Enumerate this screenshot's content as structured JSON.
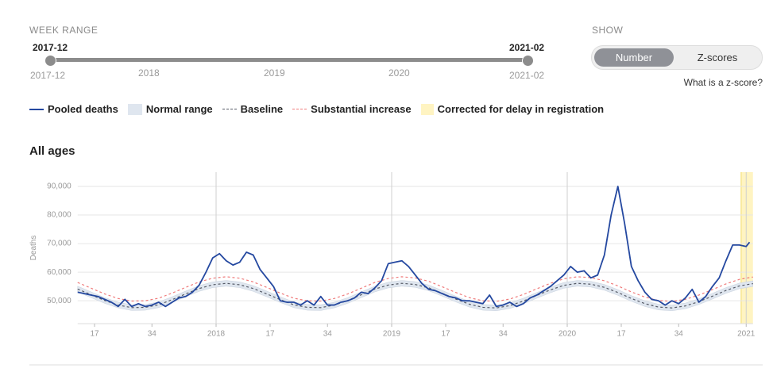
{
  "week_range": {
    "label": "WEEK RANGE",
    "start": "2017-12",
    "end": "2021-02",
    "ticks": [
      "2017-12",
      "2018",
      "2019",
      "2020",
      "2021-02"
    ]
  },
  "show": {
    "label": "SHOW",
    "options": [
      "Number",
      "Z-scores"
    ],
    "active": 0,
    "help": "What is a z-score?"
  },
  "chart_data": {
    "type": "line",
    "title": "All ages",
    "ylabel": "Deaths",
    "xlim": [
      12,
      212
    ],
    "ylim": [
      42000,
      95000
    ],
    "xticks": [
      {
        "value": 17,
        "label": "17"
      },
      {
        "value": 34,
        "label": "34"
      },
      {
        "value": 53,
        "label": "2018"
      },
      {
        "value": 69,
        "label": "17"
      },
      {
        "value": 86,
        "label": "34"
      },
      {
        "value": 105,
        "label": "2019"
      },
      {
        "value": 121,
        "label": "17"
      },
      {
        "value": 138,
        "label": "34"
      },
      {
        "value": 157,
        "label": "2020"
      },
      {
        "value": 173,
        "label": "17"
      },
      {
        "value": 190,
        "label": "34"
      },
      {
        "value": 210,
        "label": "2021"
      }
    ],
    "xgrid": [
      53,
      105,
      157,
      210
    ],
    "yticks": [
      {
        "value": 50000,
        "label": "50,000"
      },
      {
        "value": 60000,
        "label": "60,000"
      },
      {
        "value": 70000,
        "label": "70,000"
      },
      {
        "value": 80000,
        "label": "80,000"
      },
      {
        "value": 90000,
        "label": "90,000"
      }
    ],
    "grid": true,
    "series": [
      {
        "name": "Pooled deaths",
        "style": "solid",
        "color": "#2448a0",
        "x": [
          12,
          14,
          16,
          18,
          20,
          22,
          24,
          26,
          28,
          30,
          32,
          34,
          36,
          38,
          40,
          42,
          44,
          46,
          48,
          50,
          52,
          54,
          56,
          58,
          60,
          62,
          64,
          66,
          68,
          70,
          72,
          74,
          76,
          78,
          80,
          82,
          84,
          86,
          88,
          90,
          92,
          94,
          96,
          98,
          100,
          102,
          104,
          106,
          108,
          110,
          112,
          114,
          116,
          118,
          120,
          122,
          124,
          126,
          128,
          130,
          132,
          134,
          136,
          138,
          140,
          142,
          144,
          146,
          148,
          150,
          152,
          154,
          156,
          158,
          160,
          162,
          164,
          166,
          168,
          170,
          172,
          174,
          176,
          178,
          180,
          182,
          184,
          186,
          188,
          190,
          192,
          194,
          196,
          198,
          200,
          202,
          204,
          206,
          208,
          210,
          211
        ],
        "values": [
          53000,
          52500,
          52000,
          51500,
          50500,
          49500,
          48000,
          50500,
          48000,
          49000,
          48000,
          48500,
          49500,
          48000,
          49500,
          51000,
          51500,
          53000,
          55500,
          60000,
          65000,
          66500,
          64000,
          62500,
          63500,
          67000,
          66000,
          61000,
          58000,
          55000,
          50000,
          49500,
          49500,
          48500,
          50000,
          48500,
          51500,
          48500,
          48500,
          49500,
          50000,
          51000,
          53000,
          52500,
          54500,
          57000,
          63000,
          63500,
          64000,
          62000,
          59000,
          56000,
          54000,
          53500,
          52500,
          51500,
          51000,
          50000,
          50000,
          49500,
          49000,
          52000,
          48000,
          48500,
          49500,
          48000,
          49000,
          51000,
          52000,
          53500,
          55000,
          57000,
          59000,
          62000,
          60000,
          60500,
          58000,
          59000,
          66000,
          80000,
          90000,
          77000,
          62000,
          57000,
          53000,
          50500,
          50000,
          48500,
          50000,
          49000,
          51000,
          54000,
          49500,
          51500,
          55000,
          58000,
          64000,
          69500,
          69500,
          69000,
          70500
        ]
      },
      {
        "name": "Normal range",
        "style": "band",
        "color": "#dfe6ef",
        "x": [
          12,
          16,
          20,
          24,
          28,
          32,
          36,
          40,
          44,
          48,
          52,
          56,
          60,
          64,
          68,
          72,
          76,
          80,
          84,
          88,
          92,
          96,
          100,
          104,
          108,
          112,
          116,
          120,
          124,
          128,
          132,
          136,
          140,
          144,
          148,
          152,
          156,
          160,
          164,
          168,
          172,
          176,
          180,
          184,
          188,
          192,
          196,
          200,
          204,
          208,
          212
        ],
        "lower": [
          53100,
          51100,
          49100,
          47500,
          46600,
          46700,
          47600,
          49400,
          51400,
          53300,
          54600,
          55100,
          54600,
          53300,
          51400,
          49400,
          47600,
          46700,
          46600,
          47500,
          49100,
          51100,
          53100,
          54500,
          55100,
          54700,
          53500,
          51600,
          49600,
          47800,
          46700,
          46500,
          47300,
          48900,
          50900,
          52800,
          54400,
          55100,
          54800,
          53700,
          51900,
          49800,
          48000,
          46800,
          46500,
          47200,
          48700,
          50600,
          52600,
          54200,
          55000
        ],
        "upper": [
          55100,
          53100,
          51100,
          49500,
          48600,
          48700,
          49600,
          51400,
          53400,
          55300,
          56600,
          57100,
          56600,
          55300,
          53400,
          51400,
          49600,
          48700,
          48600,
          49500,
          51100,
          53100,
          55100,
          56500,
          57100,
          56700,
          55500,
          53600,
          51600,
          49800,
          48700,
          48500,
          49300,
          50900,
          52900,
          54800,
          56400,
          57100,
          56800,
          55700,
          53900,
          51800,
          50000,
          48800,
          48500,
          49200,
          50700,
          52600,
          54600,
          56200,
          57000
        ]
      },
      {
        "name": "Baseline",
        "style": "dashed",
        "color": "#555a66",
        "x": [
          12,
          16,
          20,
          24,
          28,
          32,
          36,
          40,
          44,
          48,
          52,
          56,
          60,
          64,
          68,
          72,
          76,
          80,
          84,
          88,
          92,
          96,
          100,
          104,
          108,
          112,
          116,
          120,
          124,
          128,
          132,
          136,
          140,
          144,
          148,
          152,
          156,
          160,
          164,
          168,
          172,
          176,
          180,
          184,
          188,
          192,
          196,
          200,
          204,
          208,
          212
        ],
        "values": [
          54100,
          52100,
          50100,
          48500,
          47600,
          47700,
          48600,
          50400,
          52400,
          54300,
          55600,
          56100,
          55600,
          54300,
          52400,
          50400,
          48600,
          47700,
          47600,
          48500,
          50100,
          52100,
          54100,
          55500,
          56100,
          55700,
          54500,
          52600,
          50600,
          48800,
          47700,
          47500,
          48300,
          49900,
          51900,
          53800,
          55400,
          56100,
          55800,
          54700,
          52900,
          50800,
          49000,
          47800,
          47500,
          48200,
          49700,
          51600,
          53600,
          55200,
          56000
        ]
      },
      {
        "name": "Substantial increase",
        "style": "dashed",
        "color": "#ef7b7b",
        "x": [
          12,
          16,
          20,
          24,
          28,
          32,
          36,
          40,
          44,
          48,
          52,
          56,
          60,
          64,
          68,
          72,
          76,
          80,
          84,
          88,
          92,
          96,
          100,
          104,
          108,
          112,
          116,
          120,
          124,
          128,
          132,
          136,
          140,
          144,
          148,
          152,
          156,
          160,
          164,
          168,
          172,
          176,
          180,
          184,
          188,
          192,
          196,
          200,
          204,
          208,
          212
        ],
        "values": [
          56400,
          54400,
          52400,
          50800,
          49900,
          50000,
          50900,
          52700,
          54700,
          56600,
          57900,
          58400,
          57900,
          56600,
          54700,
          52700,
          50900,
          50000,
          49900,
          50800,
          52400,
          54400,
          56400,
          57800,
          58400,
          58000,
          56800,
          54900,
          52900,
          51100,
          50000,
          49800,
          50600,
          52200,
          54200,
          56100,
          57700,
          58400,
          58100,
          57000,
          55200,
          53100,
          51300,
          50100,
          49800,
          50500,
          52000,
          53900,
          55900,
          57500,
          58300
        ]
      }
    ],
    "highlight": {
      "name": "Corrected for delay in registration",
      "color": "#fff4c2",
      "x": [
        208.5,
        212
      ]
    }
  }
}
